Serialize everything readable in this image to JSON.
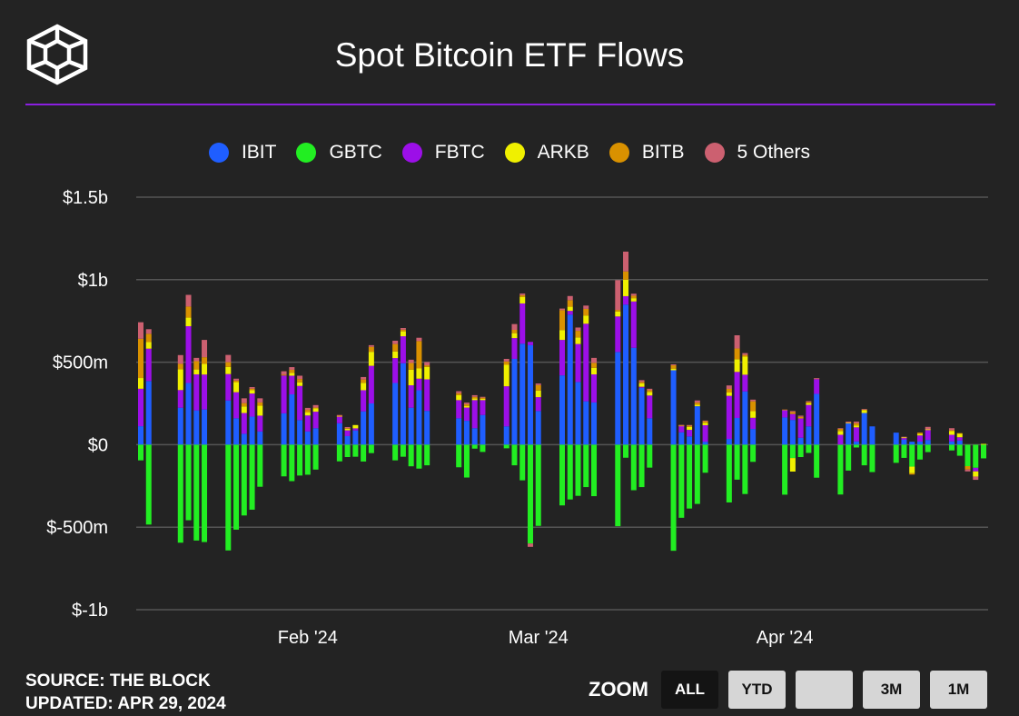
{
  "header": {
    "title": "Spot Bitcoin ETF Flows",
    "logo_icon": "cube-logo-icon"
  },
  "footer": {
    "source": "SOURCE: THE BLOCK",
    "updated": "UPDATED: APR 29, 2024"
  },
  "zoom": {
    "label": "ZOOM",
    "buttons": [
      "ALL",
      "YTD",
      "",
      "3M",
      "1M"
    ],
    "active": "ALL"
  },
  "colors": {
    "background": "#232323",
    "accent": "#8a1fe0",
    "grid": "#555555",
    "text": "#ffffff"
  },
  "chart_data": {
    "type": "bar",
    "stacked": true,
    "title": "Spot Bitcoin ETF Flows",
    "ylabel": "",
    "xlabel": "",
    "ylim": [
      -1000,
      1500
    ],
    "yticks": [
      1500,
      1000,
      500,
      0,
      -500,
      -1000
    ],
    "ytick_labels": [
      "$1.5b",
      "$1b",
      "$500m",
      "$0",
      "$-500m",
      "$-1b"
    ],
    "xtick_labels": [
      "Feb '24",
      "Mar '24",
      "Apr '24"
    ],
    "xtick_dates": [
      "2024-02-01",
      "2024-03-01",
      "2024-04-01"
    ],
    "legend_position": "top",
    "grid": true,
    "series": [
      {
        "name": "IBIT",
        "color": "#1f5eff"
      },
      {
        "name": "GBTC",
        "color": "#22ee22"
      },
      {
        "name": "FBTC",
        "color": "#9c0fe8"
      },
      {
        "name": "ARKB",
        "color": "#f0f000"
      },
      {
        "name": "BITB",
        "color": "#d99100"
      },
      {
        "name": "5 Others",
        "color": "#cc6070"
      }
    ],
    "days": [
      {
        "date": "2024-01-11",
        "IBIT": 112,
        "GBTC": -95,
        "FBTC": 227,
        "ARKB": 65,
        "BITB": 238,
        "5 Others": 100
      },
      {
        "date": "2024-01-12",
        "IBIT": 386,
        "GBTC": -484,
        "FBTC": 196,
        "ARKB": 40,
        "BITB": 50,
        "5 Others": 28
      },
      {
        "date": "2024-01-16",
        "IBIT": 224,
        "GBTC": -594,
        "FBTC": 107,
        "ARKB": 126,
        "BITB": 33,
        "5 Others": 53
      },
      {
        "date": "2024-01-17",
        "IBIT": 374,
        "GBTC": -458,
        "FBTC": 344,
        "ARKB": 52,
        "BITB": 67,
        "5 Others": 71
      },
      {
        "date": "2024-01-18",
        "IBIT": 208,
        "GBTC": -581,
        "FBTC": 218,
        "ARKB": 30,
        "BITB": 50,
        "5 Others": 20
      },
      {
        "date": "2024-01-19",
        "IBIT": 213,
        "GBTC": -590,
        "FBTC": 212,
        "ARKB": 65,
        "BITB": 40,
        "5 Others": 105
      },
      {
        "date": "2024-01-22",
        "IBIT": 268,
        "GBTC": -641,
        "FBTC": 160,
        "ARKB": 43,
        "BITB": 29,
        "5 Others": 44
      },
      {
        "date": "2024-01-23",
        "IBIT": 160,
        "GBTC": -515,
        "FBTC": 158,
        "ARKB": 61,
        "BITB": 10,
        "5 Others": 11
      },
      {
        "date": "2024-01-24",
        "IBIT": 66,
        "GBTC": -429,
        "FBTC": 126,
        "ARKB": 40,
        "BITB": 20,
        "5 Others": 29
      },
      {
        "date": "2024-01-25",
        "IBIT": 170,
        "GBTC": -394,
        "FBTC": 140,
        "ARKB": 20,
        "BITB": 10,
        "5 Others": 9
      },
      {
        "date": "2024-01-26",
        "IBIT": 80,
        "GBTC": -255,
        "FBTC": 96,
        "ARKB": 60,
        "BITB": 20,
        "5 Others": 25
      },
      {
        "date": "2024-01-29",
        "IBIT": 190,
        "GBTC": -192,
        "FBTC": 229,
        "ARKB": 0,
        "BITB": 6,
        "5 Others": 20
      },
      {
        "date": "2024-01-30",
        "IBIT": 305,
        "GBTC": -221,
        "FBTC": 113,
        "ARKB": 17,
        "BITB": 19,
        "5 Others": 16
      },
      {
        "date": "2024-01-31",
        "IBIT": 149,
        "GBTC": -187,
        "FBTC": 207,
        "ARKB": 22,
        "BITB": 20,
        "5 Others": 20
      },
      {
        "date": "2024-02-01",
        "IBIT": 80,
        "GBTC": -182,
        "FBTC": 97,
        "ARKB": 20,
        "BITB": 14,
        "5 Others": 12
      },
      {
        "date": "2024-02-02",
        "IBIT": 100,
        "GBTC": -151,
        "FBTC": 100,
        "ARKB": 20,
        "BITB": 5,
        "5 Others": 15
      },
      {
        "date": "2024-02-05",
        "IBIT": 130,
        "GBTC": -101,
        "FBTC": 40,
        "ARKB": 4,
        "BITB": 2,
        "5 Others": 4
      },
      {
        "date": "2024-02-06",
        "IBIT": 52,
        "GBTC": -75,
        "FBTC": 35,
        "ARKB": 11,
        "BITB": 2,
        "5 Others": 7
      },
      {
        "date": "2024-02-07",
        "IBIT": 86,
        "GBTC": -73,
        "FBTC": 13,
        "ARKB": 20,
        "BITB": 0,
        "5 Others": 0
      },
      {
        "date": "2024-02-08",
        "IBIT": 202,
        "GBTC": -102,
        "FBTC": 128,
        "ARKB": 45,
        "BITB": 20,
        "5 Others": 15
      },
      {
        "date": "2024-02-09",
        "IBIT": 250,
        "GBTC": -51,
        "FBTC": 228,
        "ARKB": 85,
        "BITB": 30,
        "5 Others": 10
      },
      {
        "date": "2024-02-12",
        "IBIT": 374,
        "GBTC": -95,
        "FBTC": 151,
        "ARKB": 40,
        "BITB": 45,
        "5 Others": 20
      },
      {
        "date": "2024-02-13",
        "IBIT": 494,
        "GBTC": -73,
        "FBTC": 163,
        "ARKB": 30,
        "BITB": 10,
        "5 Others": 10
      },
      {
        "date": "2024-02-14",
        "IBIT": 224,
        "GBTC": -131,
        "FBTC": 136,
        "ARKB": 95,
        "BITB": 40,
        "5 Others": 20
      },
      {
        "date": "2024-02-15",
        "IBIT": 330,
        "GBTC": -145,
        "FBTC": 70,
        "ARKB": 62,
        "BITB": 166,
        "5 Others": 20
      },
      {
        "date": "2024-02-16",
        "IBIT": 205,
        "GBTC": -125,
        "FBTC": 191,
        "ARKB": 75,
        "BITB": 10,
        "5 Others": 20
      },
      {
        "date": "2024-02-20",
        "IBIT": 160,
        "GBTC": -137,
        "FBTC": 110,
        "ARKB": 30,
        "BITB": 12,
        "5 Others": 12
      },
      {
        "date": "2024-02-21",
        "IBIT": 145,
        "GBTC": -199,
        "FBTC": 80,
        "ARKB": 10,
        "BITB": 10,
        "5 Others": 10
      },
      {
        "date": "2024-02-22",
        "IBIT": 100,
        "GBTC": -24,
        "FBTC": 170,
        "ARKB": 10,
        "BITB": 10,
        "5 Others": 10
      },
      {
        "date": "2024-02-23",
        "IBIT": 180,
        "GBTC": -44,
        "FBTC": 90,
        "ARKB": 8,
        "BITB": 7,
        "5 Others": 5
      },
      {
        "date": "2024-02-26",
        "IBIT": 111,
        "GBTC": -22,
        "FBTC": 243,
        "ARKB": 130,
        "BITB": 20,
        "5 Others": 16
      },
      {
        "date": "2024-02-27",
        "IBIT": 520,
        "GBTC": -125,
        "FBTC": 126,
        "ARKB": 30,
        "BITB": 20,
        "5 Others": 35
      },
      {
        "date": "2024-02-28",
        "IBIT": 612,
        "GBTC": -216,
        "FBTC": 244,
        "ARKB": 40,
        "BITB": 10,
        "5 Others": 10
      },
      {
        "date": "2024-02-29",
        "IBIT": 603,
        "GBTC": -599,
        "FBTC": 20,
        "ARKB": 0,
        "BITB": 0,
        "5 Others": -20
      },
      {
        "date": "2024-03-01",
        "IBIT": 204,
        "GBTC": -492,
        "FBTC": 84,
        "ARKB": 40,
        "BITB": 33,
        "5 Others": 10
      },
      {
        "date": "2024-03-04",
        "IBIT": 420,
        "GBTC": -368,
        "FBTC": 215,
        "ARKB": 60,
        "BITB": 120,
        "5 Others": 10
      },
      {
        "date": "2024-03-05",
        "IBIT": 788,
        "GBTC": -332,
        "FBTC": 23,
        "ARKB": 25,
        "BITB": 40,
        "5 Others": 25
      },
      {
        "date": "2024-03-06",
        "IBIT": 380,
        "GBTC": -310,
        "FBTC": 230,
        "ARKB": 40,
        "BITB": 40,
        "5 Others": 20
      },
      {
        "date": "2024-03-07",
        "IBIT": 263,
        "GBTC": -257,
        "FBTC": 470,
        "ARKB": 50,
        "BITB": 40,
        "5 Others": 20
      },
      {
        "date": "2024-03-08",
        "IBIT": 256,
        "GBTC": -312,
        "FBTC": 170,
        "ARKB": 40,
        "BITB": 30,
        "5 Others": 30
      },
      {
        "date": "2024-03-11",
        "IBIT": 562,
        "GBTC": -494,
        "FBTC": 215,
        "ARKB": 30,
        "BITB": 10,
        "5 Others": 180
      },
      {
        "date": "2024-03-12",
        "IBIT": 849,
        "GBTC": -79,
        "FBTC": 51,
        "ARKB": 100,
        "BITB": 50,
        "5 Others": 120
      },
      {
        "date": "2024-03-13",
        "IBIT": 587,
        "GBTC": -276,
        "FBTC": 281,
        "ARKB": 20,
        "BITB": 15,
        "5 Others": 12
      },
      {
        "date": "2024-03-14",
        "IBIT": 345,
        "GBTC": -257,
        "FBTC": 6,
        "ARKB": 20,
        "BITB": 9,
        "5 Others": 11
      },
      {
        "date": "2024-03-15",
        "IBIT": 160,
        "GBTC": -139,
        "FBTC": 138,
        "ARKB": 22,
        "BITB": 10,
        "5 Others": 9
      },
      {
        "date": "2024-03-18",
        "IBIT": 451,
        "GBTC": -643,
        "FBTC": 0,
        "ARKB": 10,
        "BITB": 20,
        "5 Others": 6
      },
      {
        "date": "2024-03-19",
        "IBIT": 75,
        "GBTC": -443,
        "FBTC": 40,
        "ARKB": 1,
        "BITB": 1,
        "5 Others": 3
      },
      {
        "date": "2024-03-20",
        "IBIT": 50,
        "GBTC": -387,
        "FBTC": 40,
        "ARKB": 18,
        "BITB": 10,
        "5 Others": 1
      },
      {
        "date": "2024-03-21",
        "IBIT": 233,
        "GBTC": -359,
        "FBTC": 0,
        "ARKB": 10,
        "BITB": 12,
        "5 Others": 13
      },
      {
        "date": "2024-03-22",
        "IBIT": 18,
        "GBTC": -170,
        "FBTC": 100,
        "ARKB": 15,
        "BITB": 10,
        "5 Others": 3
      },
      {
        "date": "2024-03-25",
        "IBIT": 35,
        "GBTC": -350,
        "FBTC": 261,
        "ARKB": 20,
        "BITB": 22,
        "5 Others": 21
      },
      {
        "date": "2024-03-26",
        "IBIT": 162,
        "GBTC": -212,
        "FBTC": 279,
        "ARKB": 77,
        "BITB": 65,
        "5 Others": 80
      },
      {
        "date": "2024-03-27",
        "IBIT": 323,
        "GBTC": -299,
        "FBTC": 101,
        "ARKB": 110,
        "BITB": 10,
        "5 Others": 11
      },
      {
        "date": "2024-03-28",
        "IBIT": 95,
        "GBTC": -104,
        "FBTC": 68,
        "ARKB": 40,
        "BITB": 60,
        "5 Others": 10
      },
      {
        "date": "2024-04-01",
        "IBIT": 165,
        "GBTC": -303,
        "FBTC": 44,
        "ARKB": 0,
        "BITB": 4,
        "5 Others": 0
      },
      {
        "date": "2024-04-02",
        "IBIT": 150,
        "GBTC": -81,
        "FBTC": 36,
        "ARKB": -82,
        "BITB": 12,
        "5 Others": 6
      },
      {
        "date": "2024-04-03",
        "IBIT": 42,
        "GBTC": -75,
        "FBTC": 117,
        "ARKB": 0,
        "BITB": 10,
        "5 Others": 7
      },
      {
        "date": "2024-04-04",
        "IBIT": 111,
        "GBTC": -50,
        "FBTC": 130,
        "ARKB": 11,
        "BITB": 7,
        "5 Others": 5
      },
      {
        "date": "2024-04-05",
        "IBIT": 308,
        "GBTC": -200,
        "FBTC": 90,
        "ARKB": 0,
        "BITB": 4,
        "5 Others": 1
      },
      {
        "date": "2024-04-08",
        "IBIT": 0,
        "GBTC": -302,
        "FBTC": 60,
        "ARKB": 23,
        "BITB": 14,
        "5 Others": 3
      },
      {
        "date": "2024-04-09",
        "IBIT": 129,
        "GBTC": -157,
        "FBTC": 0,
        "ARKB": 4,
        "BITB": 0,
        "5 Others": 7
      },
      {
        "date": "2024-04-10",
        "IBIT": 20,
        "GBTC": -17,
        "FBTC": 85,
        "ARKB": 12,
        "BITB": 13,
        "5 Others": 10
      },
      {
        "date": "2024-04-11",
        "IBIT": 192,
        "GBTC": -125,
        "FBTC": 0,
        "ARKB": 17,
        "BITB": 5,
        "5 Others": 2
      },
      {
        "date": "2024-04-12",
        "IBIT": 111,
        "GBTC": -166,
        "FBTC": 0,
        "ARKB": 0,
        "BITB": 0,
        "5 Others": 0
      },
      {
        "date": "2024-04-15",
        "IBIT": 73,
        "GBTC": -110,
        "FBTC": 0,
        "ARKB": 0,
        "BITB": 0,
        "5 Others": 0
      },
      {
        "date": "2024-04-16",
        "IBIT": 30,
        "GBTC": -80,
        "FBTC": 10,
        "ARKB": 5,
        "BITB": 0,
        "5 Others": 3
      },
      {
        "date": "2024-04-17",
        "IBIT": 18,
        "GBTC": -133,
        "FBTC": 0,
        "ARKB": -40,
        "BITB": -8,
        "5 Others": 0
      },
      {
        "date": "2024-04-18",
        "IBIT": 19,
        "GBTC": -90,
        "FBTC": 37,
        "ARKB": 9,
        "BITB": 8,
        "5 Others": 0
      },
      {
        "date": "2024-04-19",
        "IBIT": 29,
        "GBTC": -45,
        "FBTC": 60,
        "ARKB": 4,
        "BITB": 0,
        "5 Others": 15
      },
      {
        "date": "2024-04-22",
        "IBIT": 20,
        "GBTC": -35,
        "FBTC": 40,
        "ARKB": 22,
        "BITB": 5,
        "5 Others": 13
      },
      {
        "date": "2024-04-23",
        "IBIT": 25,
        "GBTC": -67,
        "FBTC": 20,
        "ARKB": 23,
        "BITB": 2,
        "5 Others": 0
      },
      {
        "date": "2024-04-24",
        "IBIT": 0,
        "GBTC": -130,
        "FBTC": 0,
        "ARKB": 0,
        "BITB": -20,
        "5 Others": -12
      },
      {
        "date": "2024-04-25",
        "IBIT": 0,
        "GBTC": -140,
        "FBTC": -22,
        "ARKB": -31,
        "BITB": 0,
        "5 Others": -20
      },
      {
        "date": "2024-04-26",
        "IBIT": 0,
        "GBTC": -83,
        "FBTC": 0,
        "ARKB": 5,
        "BITB": 0,
        "5 Others": 0
      }
    ]
  }
}
